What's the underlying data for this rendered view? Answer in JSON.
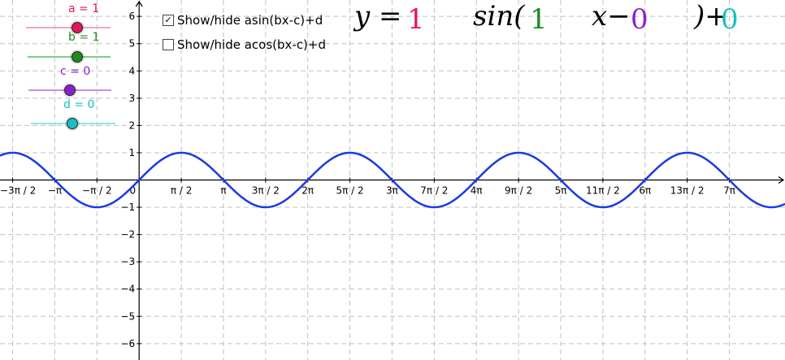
{
  "sliders": [
    {
      "label": "a = 1",
      "color": "#e0175a",
      "track_color": "#f2a6cc"
    },
    {
      "label": "b = 1",
      "color": "#1f8a1f",
      "track_color": "#7fcf7f"
    },
    {
      "label": "c = 0",
      "color": "#8a1fd1",
      "track_color": "#c58ff0"
    },
    {
      "label": "d = 0",
      "color": "#17c1c1",
      "track_color": "#8fe5e5"
    }
  ],
  "checkboxes": [
    {
      "label": "Show/hide asin(bx-c)+d",
      "checked": true,
      "mark": "✓"
    },
    {
      "label": "Show/hide acos(bx-c)+d",
      "checked": false,
      "mark": ""
    }
  ],
  "formula": {
    "y_eq": "y =",
    "a": "1",
    "sin": "sin(",
    "b": "1",
    "x_minus": "x−",
    "c": "0",
    "close_plus": ")+",
    "d": "0"
  },
  "chart_data": {
    "type": "line",
    "series": [
      {
        "function": "sin",
        "a": 1,
        "b": 1,
        "c": 0,
        "d": 0,
        "color": "#1a3be0"
      }
    ],
    "x_tick_labels": [
      "−3π / 2",
      "−π",
      "−π / 2",
      "0",
      "π / 2",
      "π",
      "3π / 2",
      "2π",
      "5π / 2",
      "3π",
      "7π / 2",
      "4π",
      "9π / 2",
      "5π",
      "11π / 2",
      "6π",
      "13π / 2",
      "7π"
    ],
    "x_tick_values_over_pi": [
      -1.5,
      -1,
      -0.5,
      0,
      0.5,
      1,
      1.5,
      2,
      2.5,
      3,
      3.5,
      4,
      4.5,
      5,
      5.5,
      6,
      6.5,
      7
    ],
    "y_tick_values": [
      6,
      5,
      4,
      3,
      2,
      1,
      -1,
      -2,
      -3,
      -4,
      -5,
      -6
    ],
    "y_tick_labels": [
      "6",
      "5",
      "4",
      "3",
      "2",
      "1",
      "−1",
      "−2",
      "−3",
      "−4",
      "−5",
      "−6"
    ],
    "xlim_over_pi": [
      -1.65,
      7.66
    ],
    "ylim": [
      -6.6,
      6.6
    ],
    "grid": true
  }
}
